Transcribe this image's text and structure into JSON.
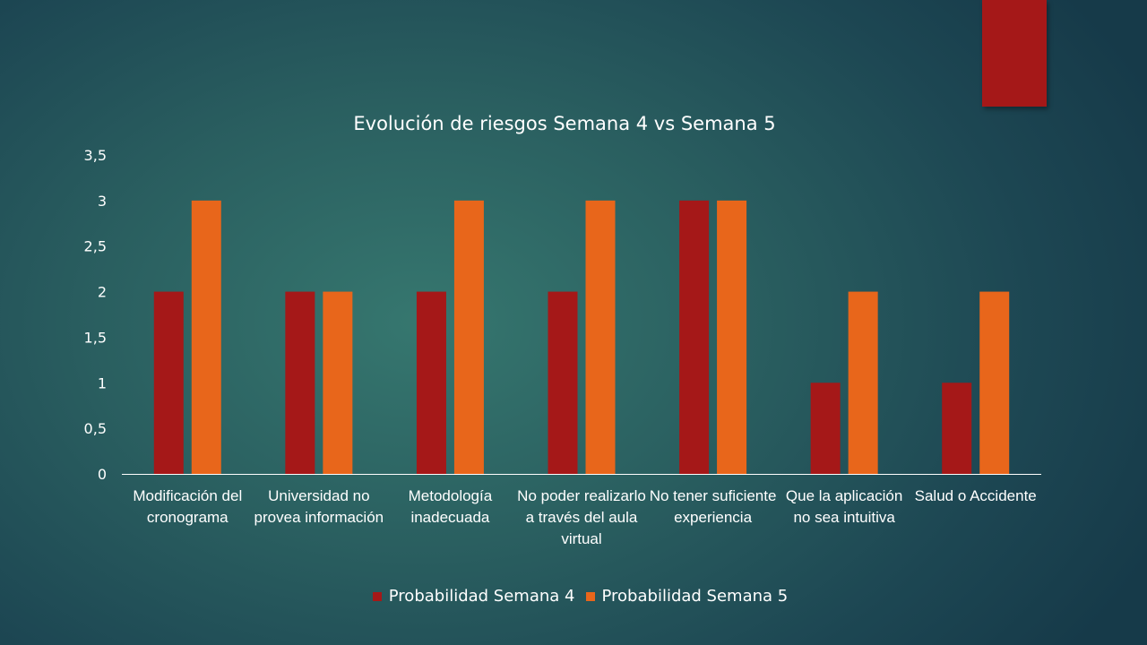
{
  "chart_data": {
    "type": "bar",
    "title": "Evolución de riesgos Semana 4 vs Semana 5",
    "xlabel": "",
    "ylabel": "",
    "ylim": [
      0,
      3.5
    ],
    "yticks": [
      "0",
      "0,5",
      "1",
      "1,5",
      "2",
      "2,5",
      "3",
      "3,5"
    ],
    "categories": [
      "Modificación del cronograma",
      "Universidad no provea información",
      "Metodología inadecuada",
      "No poder realizarlo a través del aula virtual",
      "No tener suficiente experiencia",
      "Que la aplicación no sea intuitiva",
      "Salud o Accidente"
    ],
    "series": [
      {
        "name": "Probabilidad Semana 4",
        "color": "#a51818",
        "values": [
          2,
          2,
          2,
          2,
          3,
          1,
          1
        ]
      },
      {
        "name": "Probabilidad Semana 5",
        "color": "#e8661b",
        "values": [
          3,
          2,
          3,
          3,
          3,
          2,
          2
        ]
      }
    ],
    "grid": false,
    "legend": "bottom"
  },
  "decor": {
    "corner_tab_color": "#a51818"
  }
}
